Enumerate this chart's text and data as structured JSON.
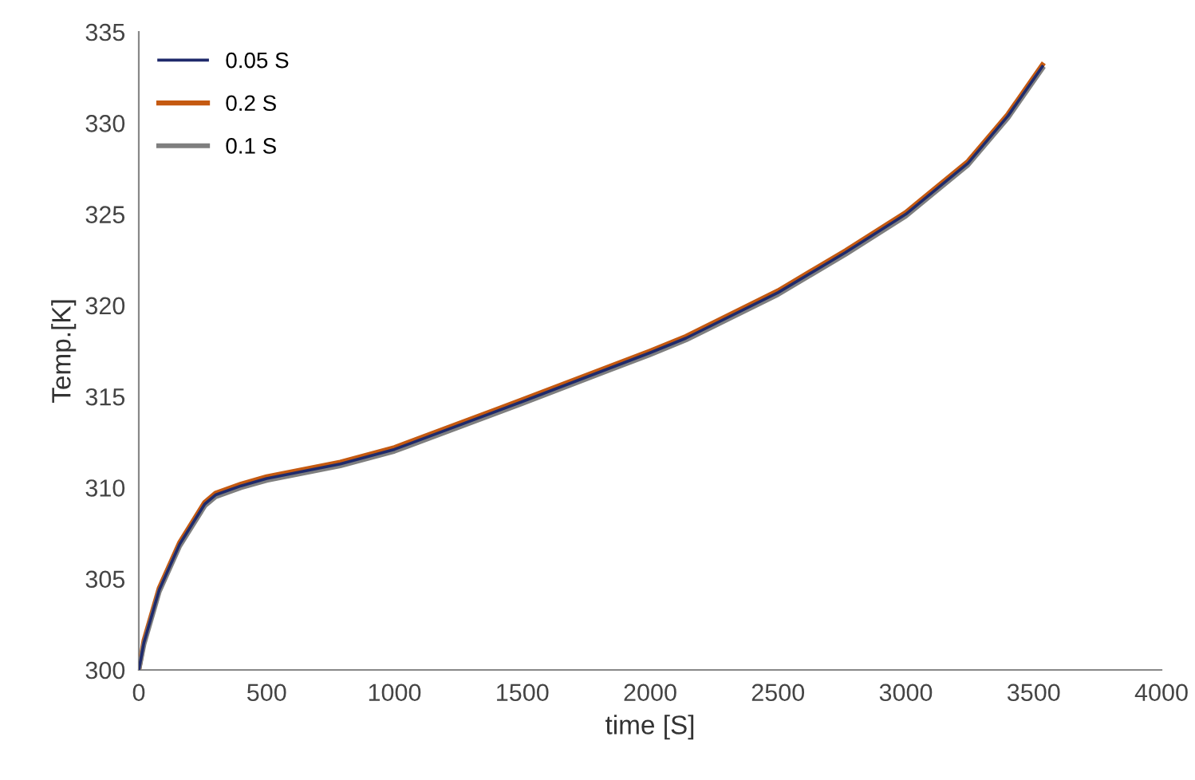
{
  "chart_data": {
    "type": "line",
    "xlabel": "time [S]",
    "ylabel": "Temp.[K]",
    "x": [
      0,
      20,
      80,
      160,
      258,
      300,
      400,
      500,
      788,
      1000,
      1496,
      2000,
      2140,
      2500,
      2764,
      3000,
      3243,
      3400,
      3534
    ],
    "series": [
      {
        "name": "0.05 S",
        "color": "#1f2a6b",
        "values": [
          300.0,
          301.5,
          304.4,
          306.9,
          309.1,
          309.6,
          310.1,
          310.5,
          311.3,
          312.1,
          314.7,
          317.4,
          318.2,
          320.7,
          322.9,
          325.0,
          327.8,
          330.4,
          333.1
        ]
      },
      {
        "name": "0.2 S",
        "color": "#c55a11",
        "values": [
          300.0,
          301.6,
          304.5,
          307.0,
          309.2,
          309.7,
          310.2,
          310.6,
          311.4,
          312.2,
          314.8,
          317.5,
          318.3,
          320.8,
          323.0,
          325.1,
          327.9,
          330.5,
          333.2
        ]
      },
      {
        "name": "0.1 S",
        "color": "#7f7f7f",
        "values": [
          300.0,
          301.4,
          304.3,
          306.8,
          309.0,
          309.5,
          310.0,
          310.4,
          311.2,
          312.0,
          314.6,
          317.3,
          318.1,
          320.6,
          322.8,
          324.9,
          327.7,
          330.3,
          333.0
        ]
      }
    ],
    "xlim": [
      0,
      4000
    ],
    "xticks": [
      0,
      500,
      1000,
      1500,
      2000,
      2500,
      3000,
      3500,
      4000
    ],
    "ylim": [
      300,
      335
    ],
    "yticks": [
      300,
      305,
      310,
      315,
      320,
      325,
      330,
      335
    ],
    "grid": false,
    "legend": "top left",
    "marker": "none",
    "line_style": "solid"
  }
}
